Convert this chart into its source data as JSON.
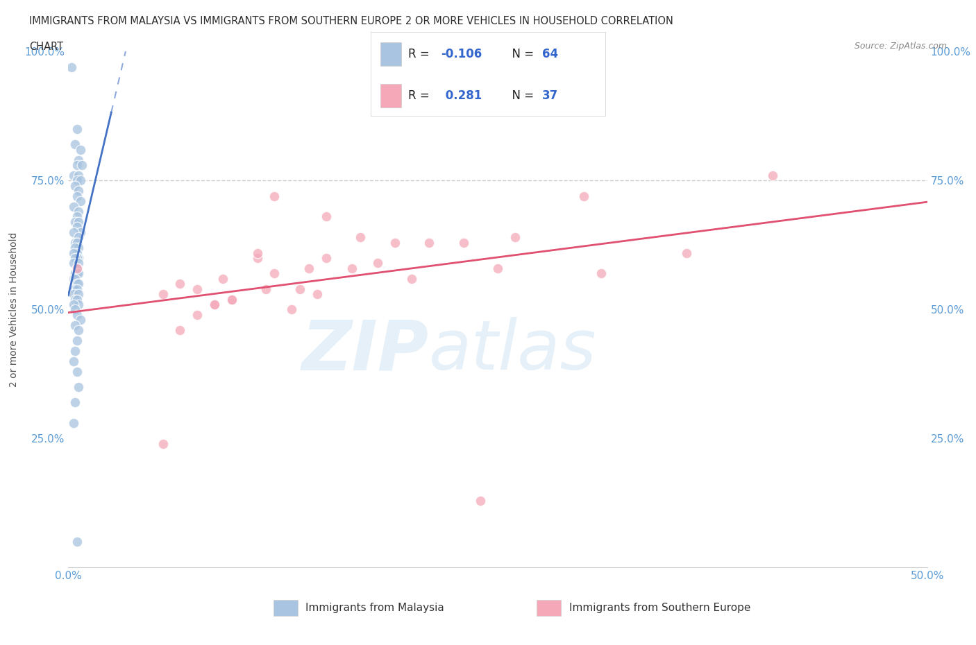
{
  "title_line1": "IMMIGRANTS FROM MALAYSIA VS IMMIGRANTS FROM SOUTHERN EUROPE 2 OR MORE VEHICLES IN HOUSEHOLD CORRELATION",
  "title_line2": "CHART",
  "source": "Source: ZipAtlas.com",
  "ylabel": "2 or more Vehicles in Household",
  "xlim": [
    0.0,
    0.5
  ],
  "ylim": [
    0.0,
    1.0
  ],
  "malaysia_color": "#a8c4e0",
  "southern_europe_color": "#f4a8b8",
  "malaysia_R": -0.106,
  "malaysia_N": 64,
  "southern_europe_R": 0.281,
  "southern_europe_N": 37,
  "malaysia_x": [
    0.002,
    0.005,
    0.004,
    0.007,
    0.006,
    0.005,
    0.008,
    0.003,
    0.006,
    0.005,
    0.007,
    0.004,
    0.006,
    0.005,
    0.007,
    0.003,
    0.006,
    0.005,
    0.004,
    0.006,
    0.005,
    0.007,
    0.003,
    0.006,
    0.004,
    0.005,
    0.006,
    0.004,
    0.005,
    0.003,
    0.006,
    0.005,
    0.004,
    0.003,
    0.006,
    0.005,
    0.004,
    0.005,
    0.006,
    0.003,
    0.004,
    0.005,
    0.006,
    0.004,
    0.005,
    0.003,
    0.006,
    0.004,
    0.005,
    0.006,
    0.003,
    0.004,
    0.005,
    0.007,
    0.004,
    0.006,
    0.005,
    0.004,
    0.003,
    0.005,
    0.006,
    0.004,
    0.003,
    0.005
  ],
  "malaysia_y": [
    0.97,
    0.85,
    0.82,
    0.81,
    0.79,
    0.78,
    0.78,
    0.76,
    0.76,
    0.75,
    0.75,
    0.74,
    0.73,
    0.72,
    0.71,
    0.7,
    0.69,
    0.68,
    0.67,
    0.67,
    0.66,
    0.65,
    0.65,
    0.64,
    0.63,
    0.63,
    0.62,
    0.62,
    0.61,
    0.61,
    0.6,
    0.6,
    0.6,
    0.59,
    0.59,
    0.58,
    0.57,
    0.57,
    0.57,
    0.56,
    0.56,
    0.55,
    0.55,
    0.54,
    0.54,
    0.53,
    0.53,
    0.52,
    0.52,
    0.51,
    0.51,
    0.5,
    0.49,
    0.48,
    0.47,
    0.46,
    0.44,
    0.42,
    0.4,
    0.38,
    0.35,
    0.32,
    0.28,
    0.05
  ],
  "southern_europe_x": [
    0.005,
    0.12,
    0.15,
    0.09,
    0.11,
    0.19,
    0.23,
    0.3,
    0.15,
    0.065,
    0.17,
    0.095,
    0.14,
    0.075,
    0.21,
    0.26,
    0.055,
    0.12,
    0.18,
    0.085,
    0.36,
    0.31,
    0.25,
    0.13,
    0.065,
    0.11,
    0.145,
    0.085,
    0.055,
    0.41,
    0.095,
    0.135,
    0.075,
    0.165,
    0.2,
    0.115,
    0.24
  ],
  "southern_europe_y": [
    0.58,
    0.72,
    0.68,
    0.56,
    0.6,
    0.63,
    0.63,
    0.72,
    0.6,
    0.55,
    0.64,
    0.52,
    0.58,
    0.54,
    0.63,
    0.64,
    0.53,
    0.57,
    0.59,
    0.51,
    0.61,
    0.57,
    0.58,
    0.5,
    0.46,
    0.61,
    0.53,
    0.51,
    0.24,
    0.76,
    0.52,
    0.54,
    0.49,
    0.58,
    0.56,
    0.54,
    0.13
  ],
  "ref_line_y": 0.75,
  "ref_line_x": 0.5,
  "watermark_zip": "ZIP",
  "watermark_atlas": "atlas",
  "background_color": "#ffffff",
  "title_color": "#2c2c2c",
  "axis_color": "#5b9bd5",
  "malaysia_trend_color": "#4472c4",
  "southern_trend_color": "#e05070",
  "ref_line_color": "#cccccc"
}
